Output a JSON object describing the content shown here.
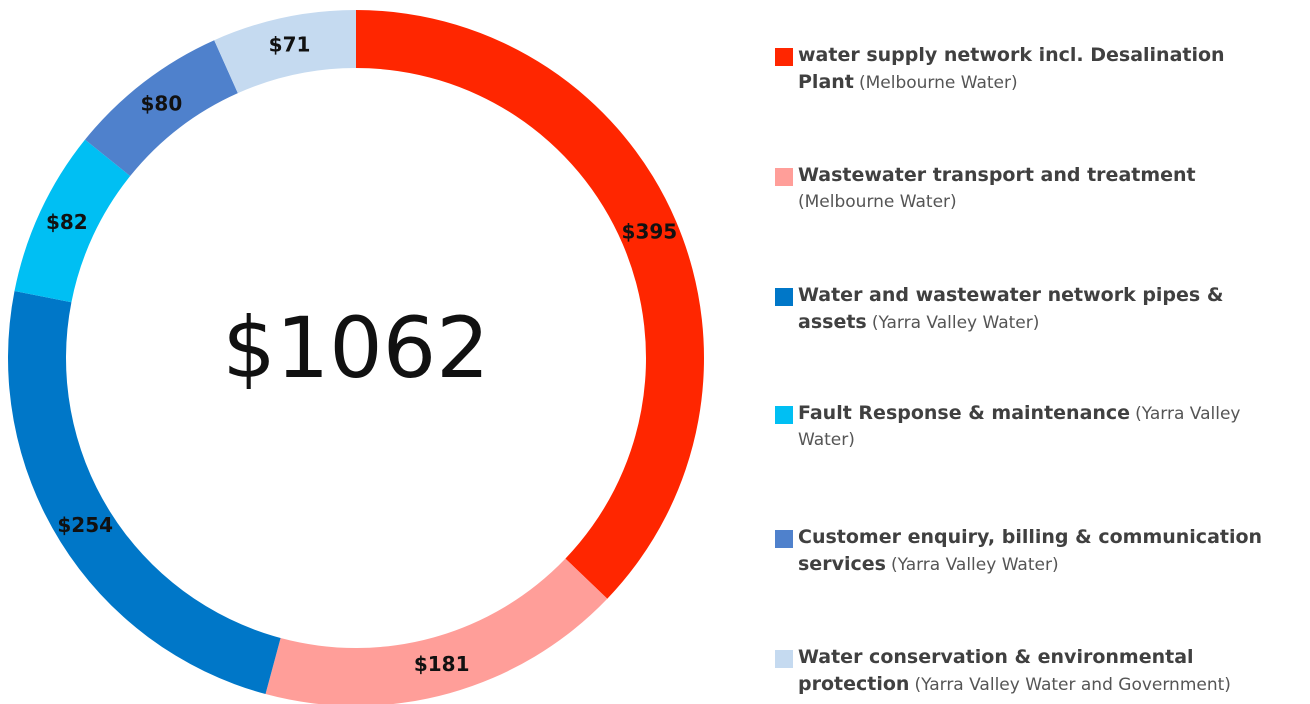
{
  "chart_data": {
    "type": "donut",
    "center_label": "$1062",
    "categories": [
      "water supply network incl. Desalination Plant",
      "Wastewater transport and treatment",
      "Water and wastewater network pipes & assets",
      "Fault Response & maintenance",
      "Customer enquiry, billing & communication services",
      "Water conservation & environmental protection"
    ],
    "notes": [
      "(Melbourne Water)",
      "(Melbourne Water)",
      "(Yarra Valley Water)",
      "(Yarra Valley Water)",
      "(Yarra Valley Water)",
      "(Yarra Valley Water and Government)"
    ],
    "values": [
      395,
      181,
      254,
      82,
      80,
      71
    ],
    "value_labels": [
      "$395",
      "$181",
      "$254",
      "$82",
      "$80",
      "$71"
    ],
    "colors": [
      "#ff2600",
      "#ff9e99",
      "#0077c8",
      "#00bff3",
      "#4f81cc",
      "#c5daf0"
    ]
  }
}
